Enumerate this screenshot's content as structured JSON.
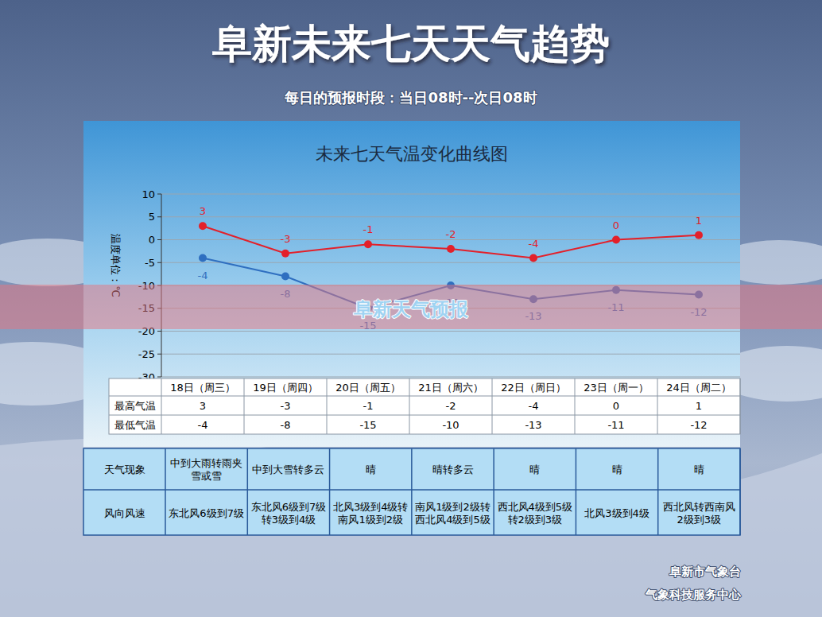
{
  "header": {
    "title": "阜新未来七天天气趋势",
    "subtitle": "每日的预报时段：当日08时--次日08时"
  },
  "chart_data": {
    "type": "line",
    "title": "未来七天气温变化曲线图",
    "y_label": "温度单位：℃",
    "categories": [
      "18日（周三）",
      "19日（周四）",
      "20日（周五）",
      "21日（周六）",
      "22日（周日）",
      "23日（周一）",
      "24日（周二）"
    ],
    "series": [
      {
        "name": "最高气温",
        "color": "#e3202a",
        "values": [
          3,
          -3,
          -1,
          -2,
          -4,
          0,
          1
        ]
      },
      {
        "name": "最低气温",
        "color": "#2f6fc0",
        "values": [
          -4,
          -8,
          -15,
          -10,
          -13,
          -11,
          -12
        ]
      }
    ],
    "ylim": [
      -30,
      10
    ],
    "yticks": [
      -30,
      -25,
      -20,
      -15,
      -10,
      -5,
      0,
      5,
      10
    ],
    "grid": true,
    "data_labels": true,
    "marker": "circle"
  },
  "table": {
    "rows": [
      {
        "label": "天气现象",
        "cells": [
          "中到大雨转雨夹雪或雪",
          "中到大雪转多云",
          "晴",
          "晴转多云",
          "晴",
          "晴",
          "晴"
        ]
      },
      {
        "label": "风向风速",
        "cells": [
          "东北风6级到7级",
          "东北风6级到7级转3级到4级",
          "北风3级到4级转南风1级到2级",
          "南风1级到2级转西北风4级到5级",
          "西北风4级到5级转2级到3级",
          "北风3级到4级",
          "西北风转西南风2级到3级"
        ]
      }
    ]
  },
  "watermark": "阜新天气预报",
  "footer": [
    "阜新市气象台",
    "气象科技服务中心"
  ]
}
